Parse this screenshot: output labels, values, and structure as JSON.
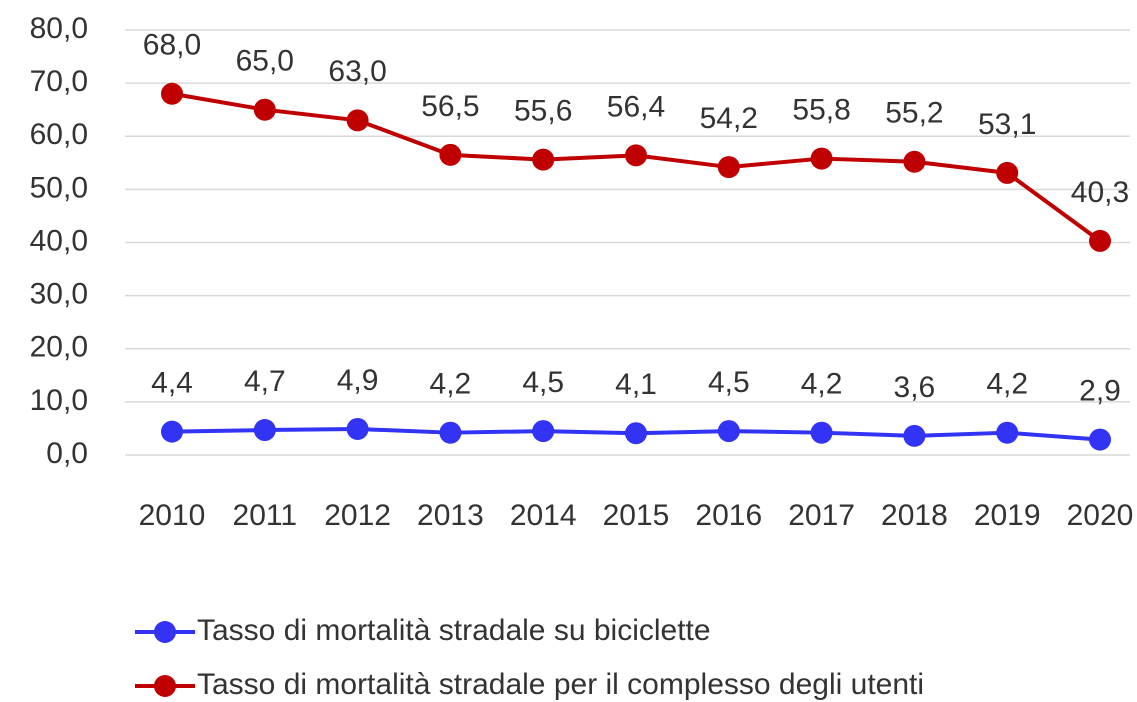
{
  "chart_data": {
    "type": "line",
    "categories": [
      "2010",
      "2011",
      "2012",
      "2013",
      "2014",
      "2015",
      "2016",
      "2017",
      "2018",
      "2019",
      "2020"
    ],
    "series": [
      {
        "name": "Tasso di mortalità stradale su biciclette",
        "color": "#3333f5",
        "values": [
          4.4,
          4.7,
          4.9,
          4.2,
          4.5,
          4.1,
          4.5,
          4.2,
          3.6,
          4.2,
          2.9
        ],
        "value_labels": [
          "4,4",
          "4,7",
          "4,9",
          "4,2",
          "4,5",
          "4,1",
          "4,5",
          "4,2",
          "3,6",
          "4,2",
          "2,9"
        ]
      },
      {
        "name": "Tasso di mortalità stradale per il complesso degli utenti",
        "color": "#c00000",
        "values": [
          68.0,
          65.0,
          63.0,
          56.5,
          55.6,
          56.4,
          54.2,
          55.8,
          55.2,
          53.1,
          40.3
        ],
        "value_labels": [
          "68,0",
          "65,0",
          "63,0",
          "56,5",
          "55,6",
          "56,4",
          "54,2",
          "55,8",
          "55,2",
          "53,1",
          "40,3"
        ]
      }
    ],
    "ylim": [
      0,
      80
    ],
    "yticks": [
      {
        "value": 0,
        "label": "0,0"
      },
      {
        "value": 10,
        "label": "10,0"
      },
      {
        "value": 20,
        "label": "20,0"
      },
      {
        "value": 30,
        "label": "30,0"
      },
      {
        "value": 40,
        "label": "40,0"
      },
      {
        "value": 50,
        "label": "50,0"
      },
      {
        "value": 60,
        "label": "60,0"
      },
      {
        "value": 70,
        "label": "70,0"
      },
      {
        "value": 80,
        "label": "80,0"
      }
    ],
    "grid": true,
    "legend": "bottom"
  }
}
